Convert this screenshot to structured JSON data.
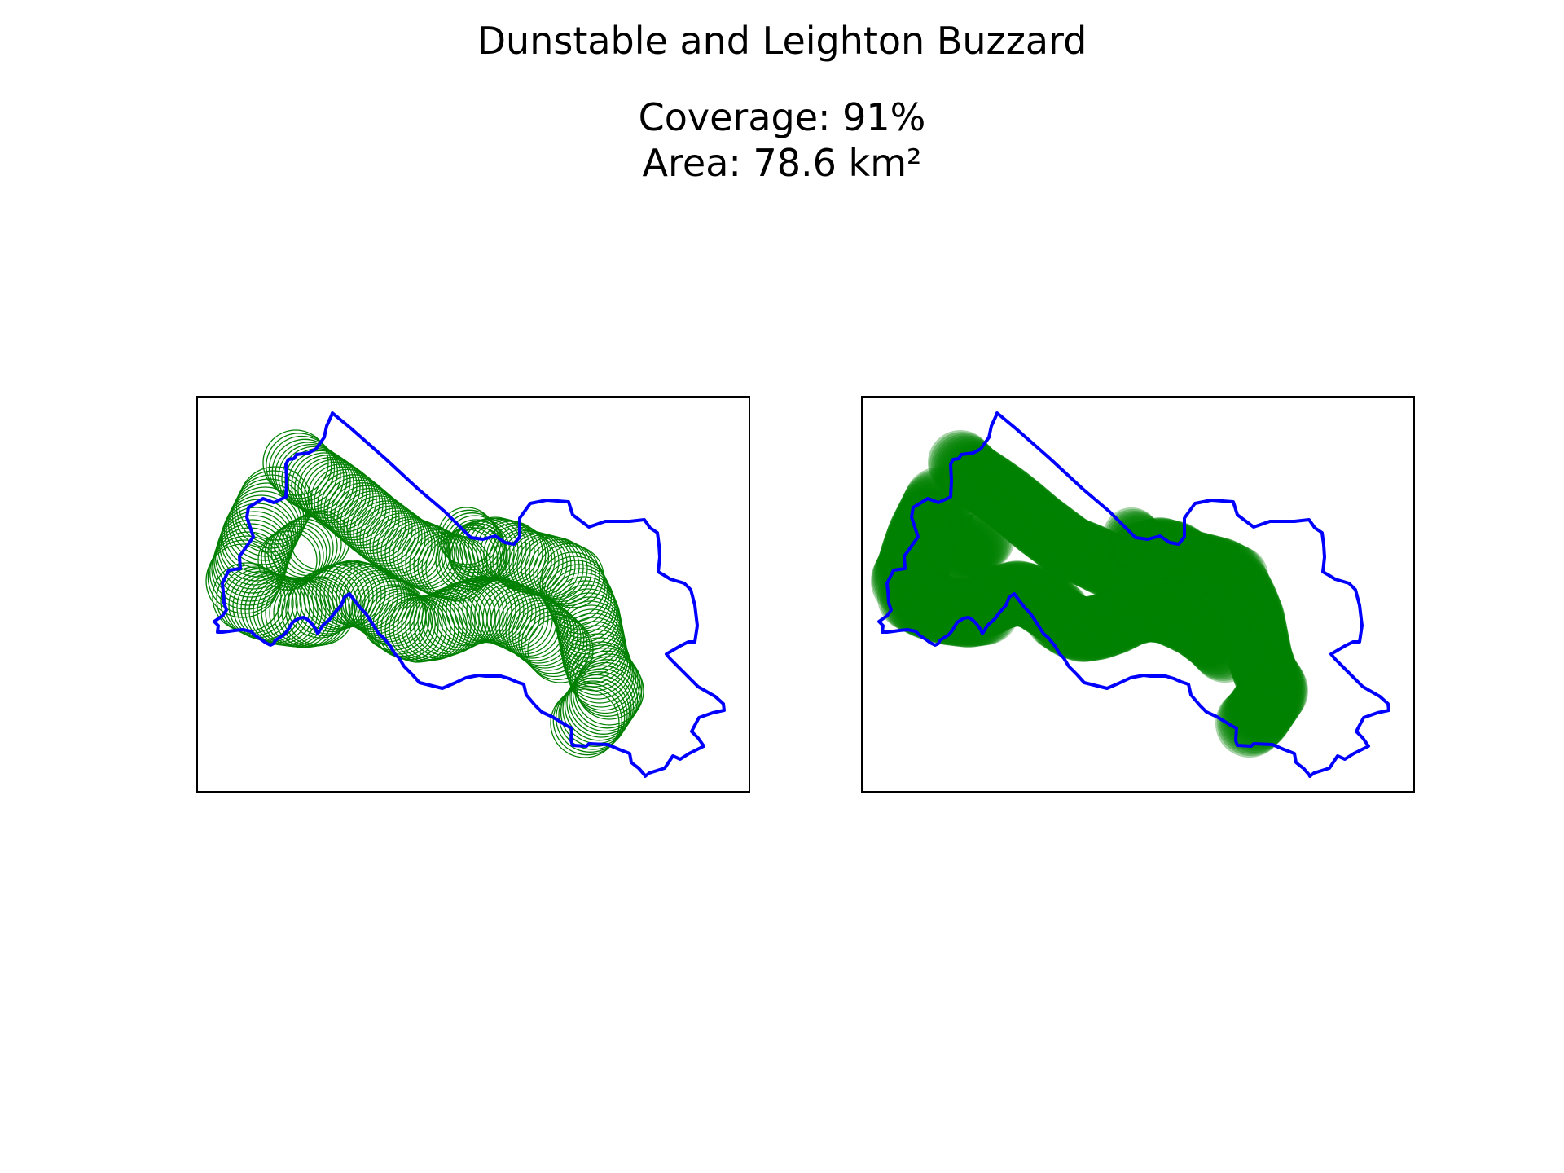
{
  "figure": {
    "title": "Dunstable and Leighton Buzzard",
    "coverage_text": "Coverage: 91%",
    "area_text": "Area: 78.6 km²"
  },
  "panels": [
    {
      "style": "outline-circles",
      "boundary_color": "#0000ff",
      "circle_color": "#008000"
    },
    {
      "style": "filled-circles",
      "boundary_color": "#0000ff",
      "circle_color": "#008000"
    }
  ],
  "coverage_percent": 91,
  "area_km2": 78.6
}
